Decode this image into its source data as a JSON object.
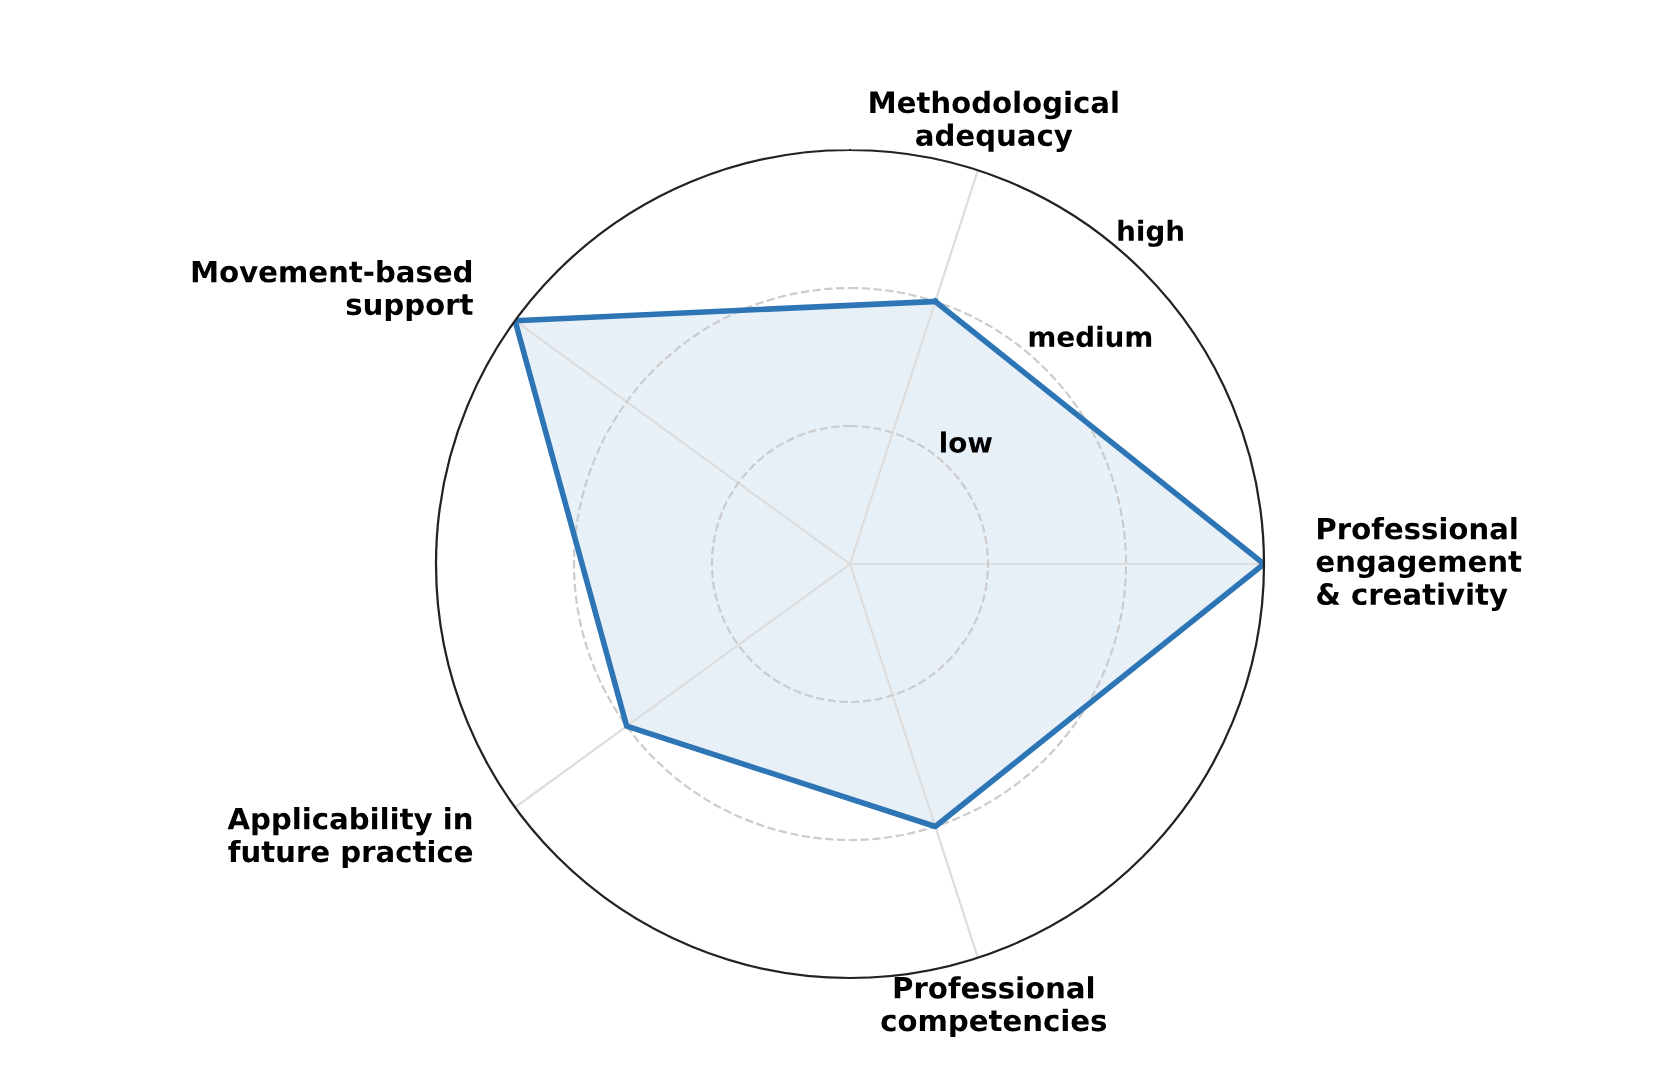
{
  "chart_data": {
    "type": "radar",
    "categories": [
      "Methodological\nadequacy",
      "Professional\nengagement\n& creativity",
      "Professional\ncompetencies",
      "Applicability in\nfuture practice",
      "Movement-based\nsupport"
    ],
    "series": [
      {
        "color": "#2e75b6",
        "values": [
          2,
          3,
          2,
          2,
          3
        ]
      }
    ],
    "ylim": [
      0,
      3
    ],
    "yticks": [
      {
        "value": 1,
        "label": "low"
      },
      {
        "value": 2,
        "label": "medium"
      },
      {
        "value": 3,
        "label": "high"
      }
    ],
    "grid": true
  }
}
